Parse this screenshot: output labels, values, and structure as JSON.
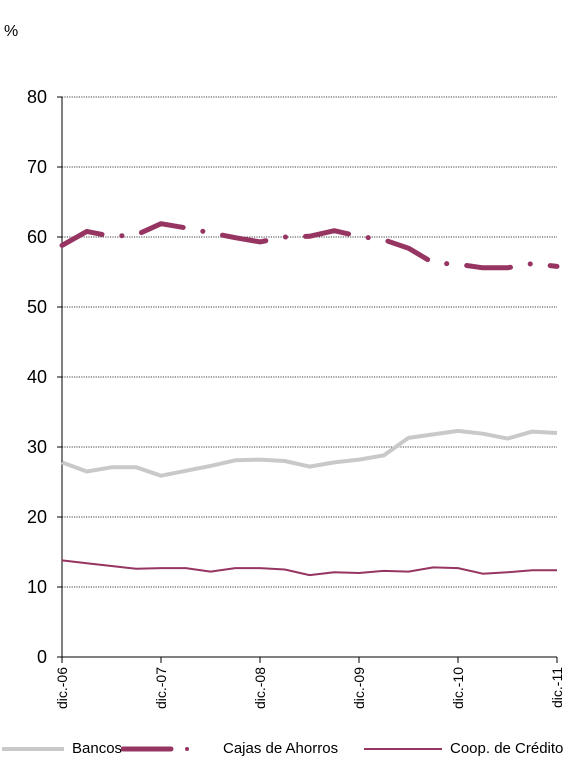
{
  "unit_label": "%",
  "colors": {
    "bancos": "#c9c9c9",
    "cajas": "#963462",
    "coop": "#963462",
    "grid": "#000000"
  },
  "chart_data": {
    "type": "line",
    "ylim": [
      0,
      80
    ],
    "yticks": [
      0,
      10,
      20,
      30,
      40,
      50,
      60,
      70,
      80
    ],
    "xlim": [
      0,
      20
    ],
    "xticks": [
      {
        "x": 0,
        "label": "dic.-06"
      },
      {
        "x": 4,
        "label": "dic.-07"
      },
      {
        "x": 8,
        "label": "dic.-08"
      },
      {
        "x": 12,
        "label": "dic.-09"
      },
      {
        "x": 16,
        "label": "dic.-10"
      },
      {
        "x": 20,
        "label": "dic.-11"
      }
    ],
    "grid": true,
    "legend_position": "bottom",
    "series": [
      {
        "name": "Bancos",
        "style": "solid-thick",
        "values": [
          27.8,
          26.5,
          27.1,
          27.1,
          25.9,
          26.6,
          27.3,
          28.1,
          28.2,
          28.0,
          27.2,
          27.8,
          28.2,
          28.8,
          31.3,
          31.8,
          32.3,
          31.9,
          31.2,
          32.2,
          32.0
        ]
      },
      {
        "name": "Cajas de Ahorros",
        "style": "dash-dot",
        "values": [
          58.8,
          60.8,
          60.1,
          60.3,
          61.9,
          61.3,
          60.6,
          59.9,
          59.3,
          60.0,
          60.1,
          60.9,
          60.1,
          59.6,
          58.4,
          56.3,
          56.1,
          55.6,
          55.6,
          56.2,
          55.8
        ]
      },
      {
        "name": "Coop. de Crédito",
        "style": "solid-thin",
        "values": [
          13.8,
          13.4,
          13.0,
          12.6,
          12.7,
          12.7,
          12.2,
          12.7,
          12.7,
          12.5,
          11.7,
          12.1,
          12.0,
          12.3,
          12.2,
          12.8,
          12.7,
          11.9,
          12.1,
          12.4,
          12.4
        ]
      }
    ]
  }
}
